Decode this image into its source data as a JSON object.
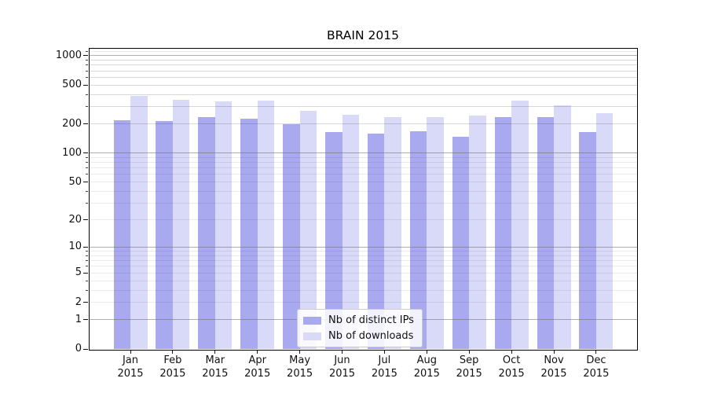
{
  "chart_data": {
    "type": "bar",
    "title": "BRAIN 2015",
    "categories": [
      "Jan",
      "Feb",
      "Mar",
      "Apr",
      "May",
      "Jun",
      "Jul",
      "Aug",
      "Sep",
      "Oct",
      "Nov",
      "Dec"
    ],
    "category_year": "2015",
    "series": [
      {
        "name": "Nb of distinct IPs",
        "color": "#a9a9f0",
        "values": [
          219,
          212,
          236,
          227,
          199,
          164,
          159,
          169,
          146,
          233,
          236,
          164
        ]
      },
      {
        "name": "Nb of downloads",
        "color": "#d9d9f8",
        "values": [
          389,
          353,
          338,
          344,
          272,
          248,
          233,
          235,
          243,
          344,
          310,
          259
        ]
      }
    ],
    "y_axis": {
      "scale": "log1p",
      "ticks": [
        0,
        1,
        2,
        5,
        10,
        20,
        50,
        100,
        200,
        500,
        1000
      ],
      "major_gridlines": [
        1,
        10,
        100,
        1000
      ],
      "ylim": [
        0,
        1200
      ]
    },
    "grid": {
      "horizontal": true,
      "major_color": "#b0b0b0",
      "minor_color": "#ebebeb"
    },
    "legend": {
      "position": "inside-bottom-center"
    }
  }
}
